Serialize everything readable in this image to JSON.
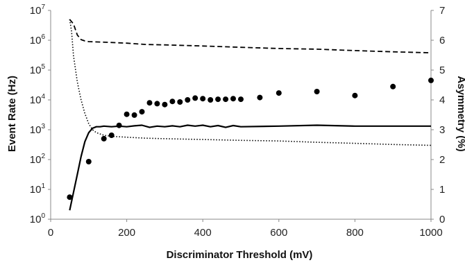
{
  "chart_data": {
    "type": "line",
    "title": "",
    "xlabel": "Discriminator Threshold (mV)",
    "ylabel_left": "Event Rate (Hz)",
    "ylabel_right": "Asymmetry (%)",
    "x_range": [
      0,
      1000
    ],
    "x_ticks": [
      "0",
      "200",
      "400",
      "600",
      "800",
      "1000"
    ],
    "y_left_scale": "log",
    "y_left_range": [
      1,
      10000000
    ],
    "y_left_ticks": [
      {
        "base": "10",
        "exp": "0"
      },
      {
        "base": "10",
        "exp": "1"
      },
      {
        "base": "10",
        "exp": "2"
      },
      {
        "base": "10",
        "exp": "3"
      },
      {
        "base": "10",
        "exp": "4"
      },
      {
        "base": "10",
        "exp": "5"
      },
      {
        "base": "10",
        "exp": "6"
      },
      {
        "base": "10",
        "exp": "7"
      }
    ],
    "y_right_range": [
      0,
      7
    ],
    "y_right_ticks": [
      "0",
      "1",
      "2",
      "3",
      "4",
      "5",
      "6",
      "7"
    ],
    "grid": false,
    "legend": "none",
    "colors": {
      "ink": "#000000",
      "axis": "#888888",
      "text": "#222222"
    },
    "series": [
      {
        "style": "dashed",
        "axis": "left",
        "x": [
          50,
          60,
          70,
          80,
          90,
          100,
          150,
          200,
          250,
          300,
          400,
          500,
          600,
          700,
          800,
          900,
          1000
        ],
        "y": [
          5000000,
          3500000,
          1500000,
          1050000,
          950000,
          900000,
          850000,
          800000,
          720000,
          700000,
          640000,
          580000,
          530000,
          500000,
          450000,
          410000,
          380000
        ]
      },
      {
        "style": "dotted",
        "axis": "left",
        "x": [
          50,
          55,
          60,
          70,
          80,
          90,
          100,
          110,
          120,
          140,
          160,
          200,
          250,
          300,
          400,
          500,
          600,
          700,
          800,
          900,
          1000
        ],
        "y": [
          5000000,
          2000000,
          300000,
          40000,
          10000,
          3500,
          1600,
          1000,
          800,
          650,
          600,
          560,
          520,
          500,
          470,
          440,
          420,
          380,
          350,
          320,
          300
        ]
      },
      {
        "style": "solid",
        "axis": "right",
        "x": [
          50,
          60,
          70,
          80,
          90,
          100,
          110,
          120,
          130,
          140,
          160,
          180,
          200,
          220,
          240,
          260,
          280,
          300,
          320,
          340,
          360,
          380,
          400,
          420,
          440,
          460,
          480,
          500,
          600,
          700,
          800,
          900,
          1000
        ],
        "y": [
          0.3,
          0.9,
          1.5,
          2.1,
          2.6,
          2.9,
          3.05,
          3.1,
          3.1,
          3.12,
          3.1,
          3.12,
          3.1,
          3.13,
          3.15,
          3.08,
          3.12,
          3.1,
          3.13,
          3.1,
          3.15,
          3.12,
          3.15,
          3.1,
          3.14,
          3.08,
          3.14,
          3.1,
          3.12,
          3.15,
          3.12,
          3.12,
          3.12
        ]
      },
      {
        "style": "markers",
        "axis": "left",
        "x": [
          50,
          100,
          140,
          160,
          180,
          200,
          220,
          240,
          260,
          280,
          300,
          320,
          340,
          360,
          380,
          400,
          420,
          440,
          460,
          480,
          500,
          550,
          600,
          700,
          800,
          900,
          1000
        ],
        "y": [
          5.5,
          85,
          500,
          650,
          1400,
          3300,
          3100,
          4000,
          8000,
          7500,
          7000,
          8900,
          8500,
          10000,
          11500,
          11000,
          10000,
          10500,
          10500,
          11000,
          10500,
          12000,
          17000,
          19000,
          14000,
          28000,
          45000
        ]
      }
    ]
  }
}
